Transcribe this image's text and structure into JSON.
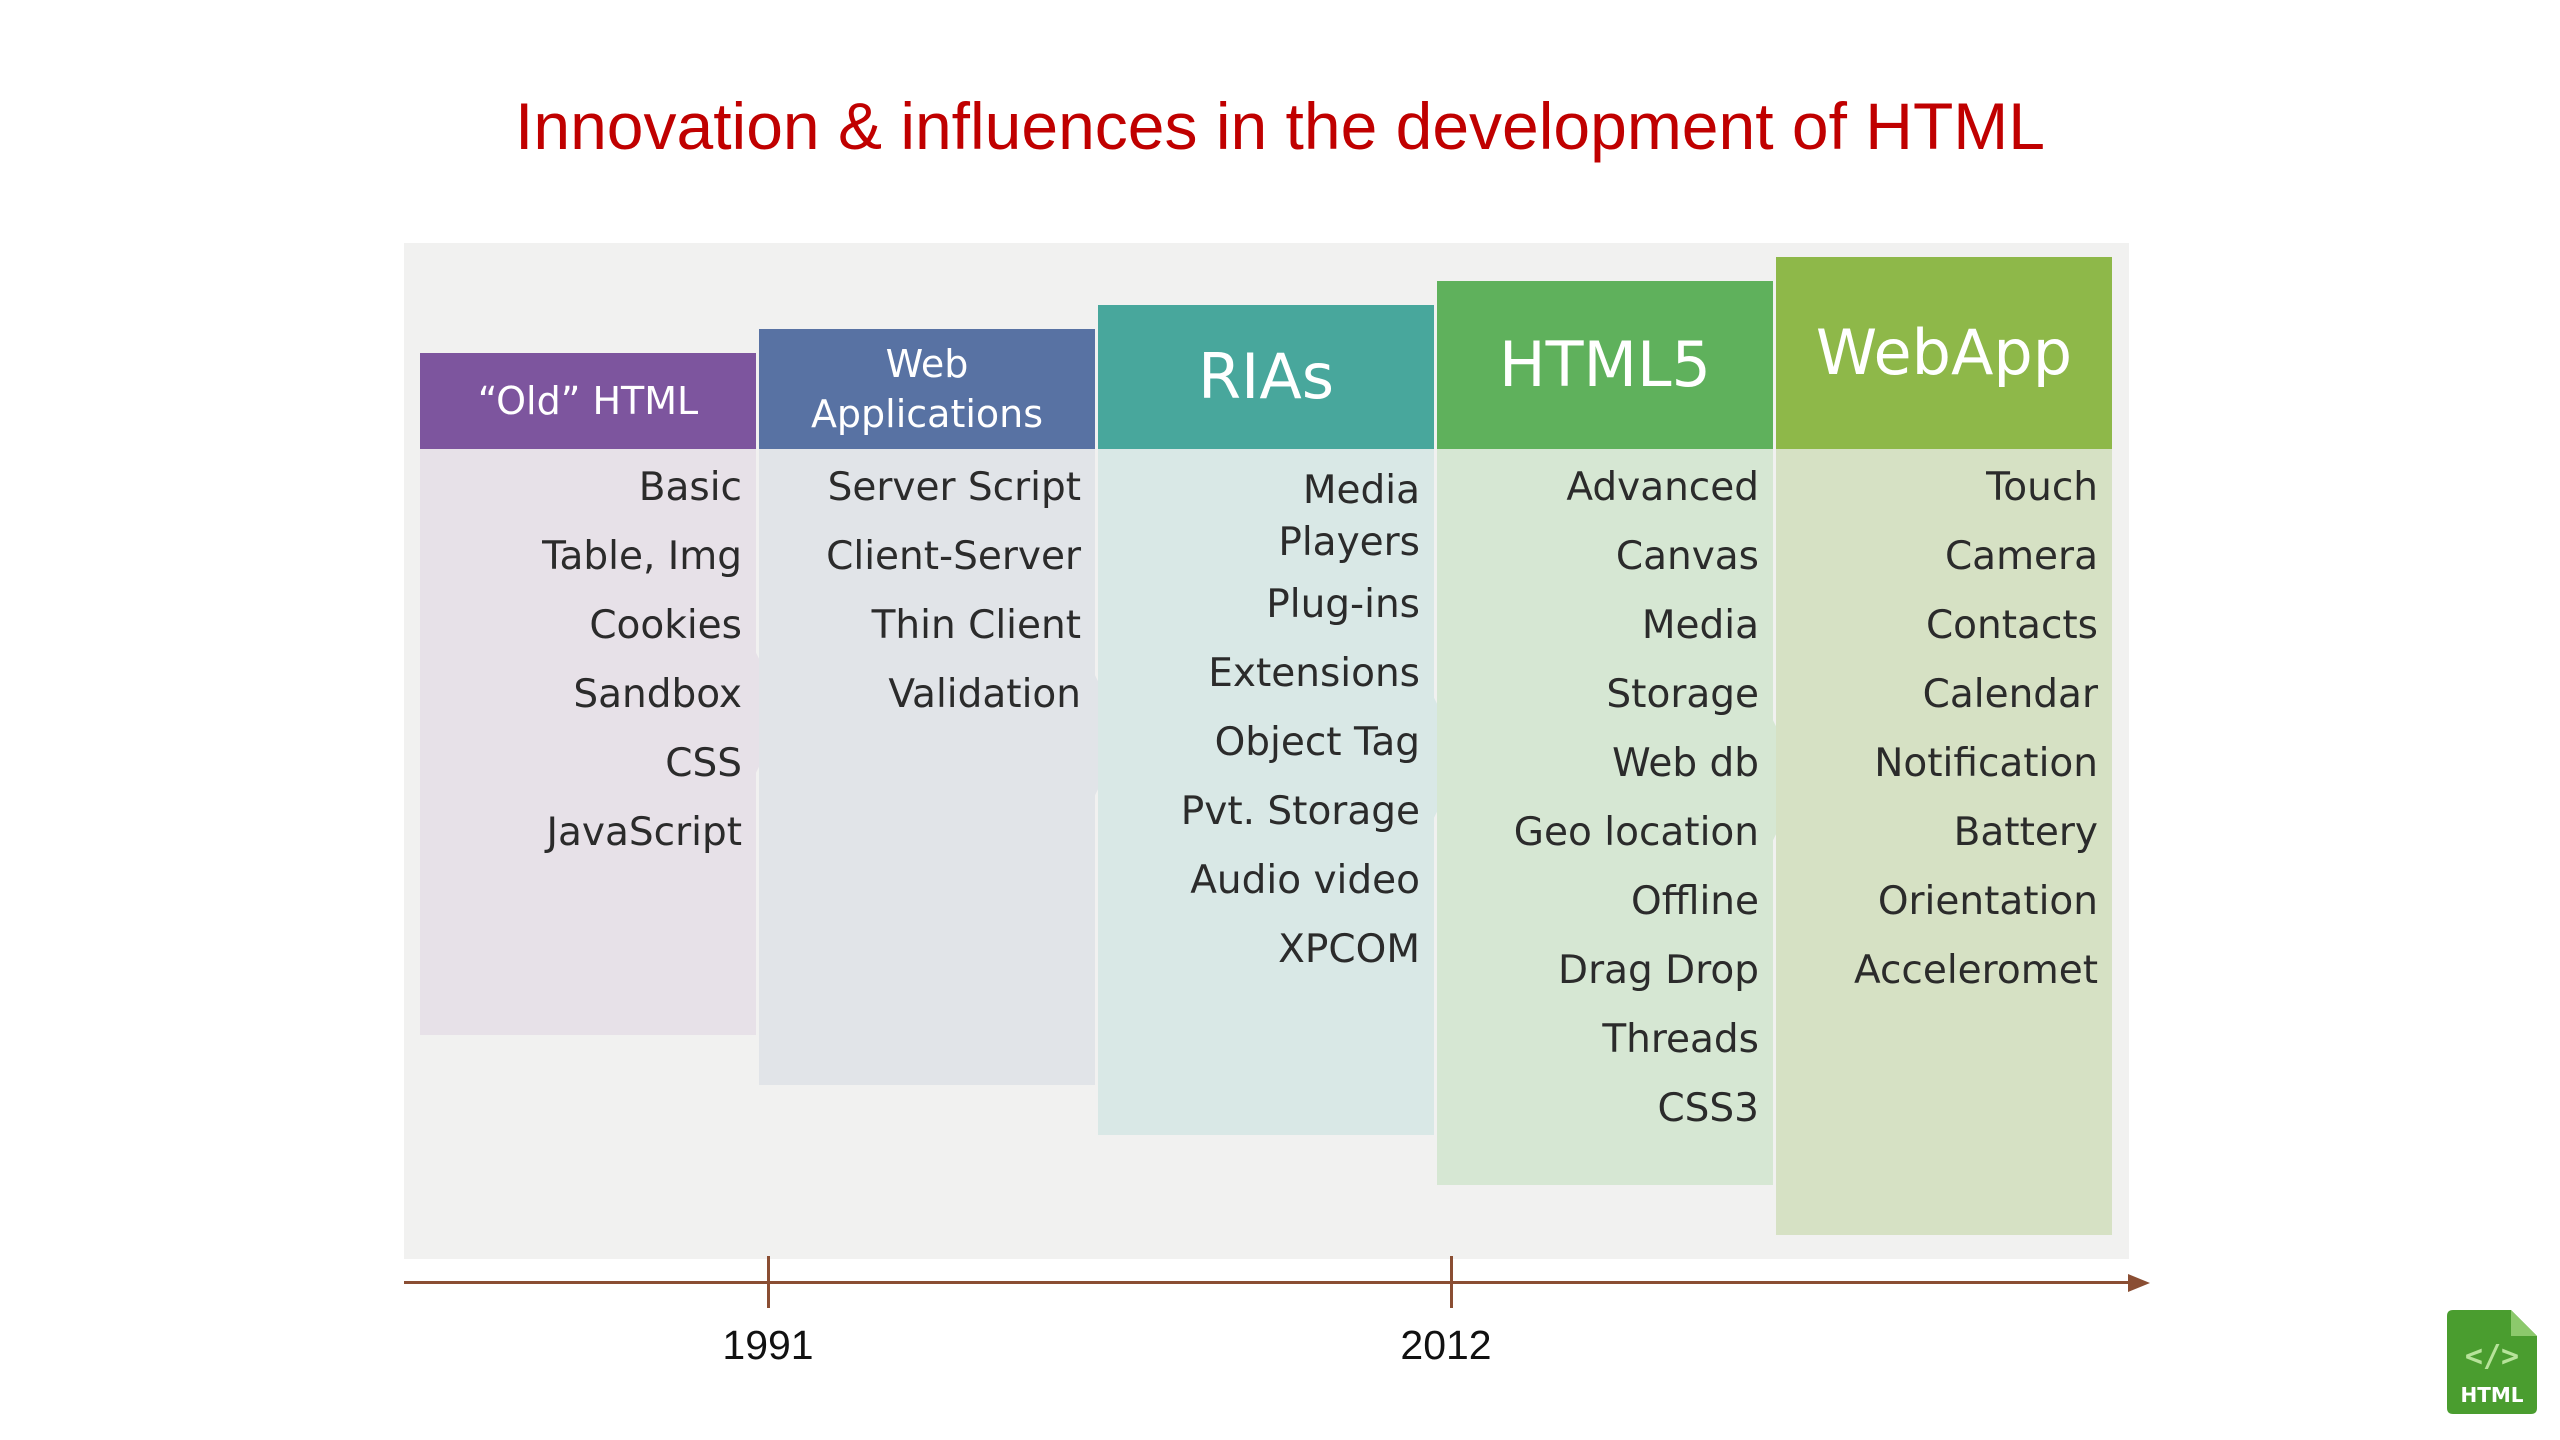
{
  "title": "Innovation & influences in the development of HTML",
  "columns": [
    {
      "header": [
        "“Old” HTML"
      ],
      "color": "#7d559e",
      "body_color": "#e7e1e8",
      "items": [
        "Basic",
        "Table, Img",
        "Cookies",
        "Sandbox",
        "CSS",
        "JavaScript"
      ]
    },
    {
      "header": [
        "Web",
        "Applications"
      ],
      "color": "#5872a3",
      "body_color": "#e1e4e8",
      "items": [
        "Server Script",
        "Client-Server",
        "Thin Client",
        "Validation"
      ]
    },
    {
      "header": [
        "RIAs"
      ],
      "color": "#48a79c",
      "body_color": "#d9e8e6",
      "items": [
        "Media Players",
        "Plug-ins",
        "Extensions",
        "Object Tag",
        "Pvt. Storage",
        "Audio video",
        "XPCOM"
      ]
    },
    {
      "header": [
        "HTML5"
      ],
      "color": "#5fb15c",
      "body_color": "#d6e7d3",
      "items": [
        "Advanced",
        "Canvas",
        "Media",
        "Storage",
        "Web db",
        "Geo location",
        "Offline",
        "Drag Drop",
        "Threads",
        "CSS3"
      ]
    },
    {
      "header": [
        "WebApp"
      ],
      "color": "#8eb849",
      "body_color": "#d6e1c4",
      "items": [
        "Touch",
        "Camera",
        "Contacts",
        "Calendar",
        "Notification",
        "Battery",
        "Orientation",
        "Acceleromet"
      ]
    }
  ],
  "timeline": {
    "labels": [
      "1991",
      "2012"
    ]
  },
  "logo": {
    "text": "HTML",
    "icon": "html-file-icon",
    "color": "#4a9d2f"
  }
}
